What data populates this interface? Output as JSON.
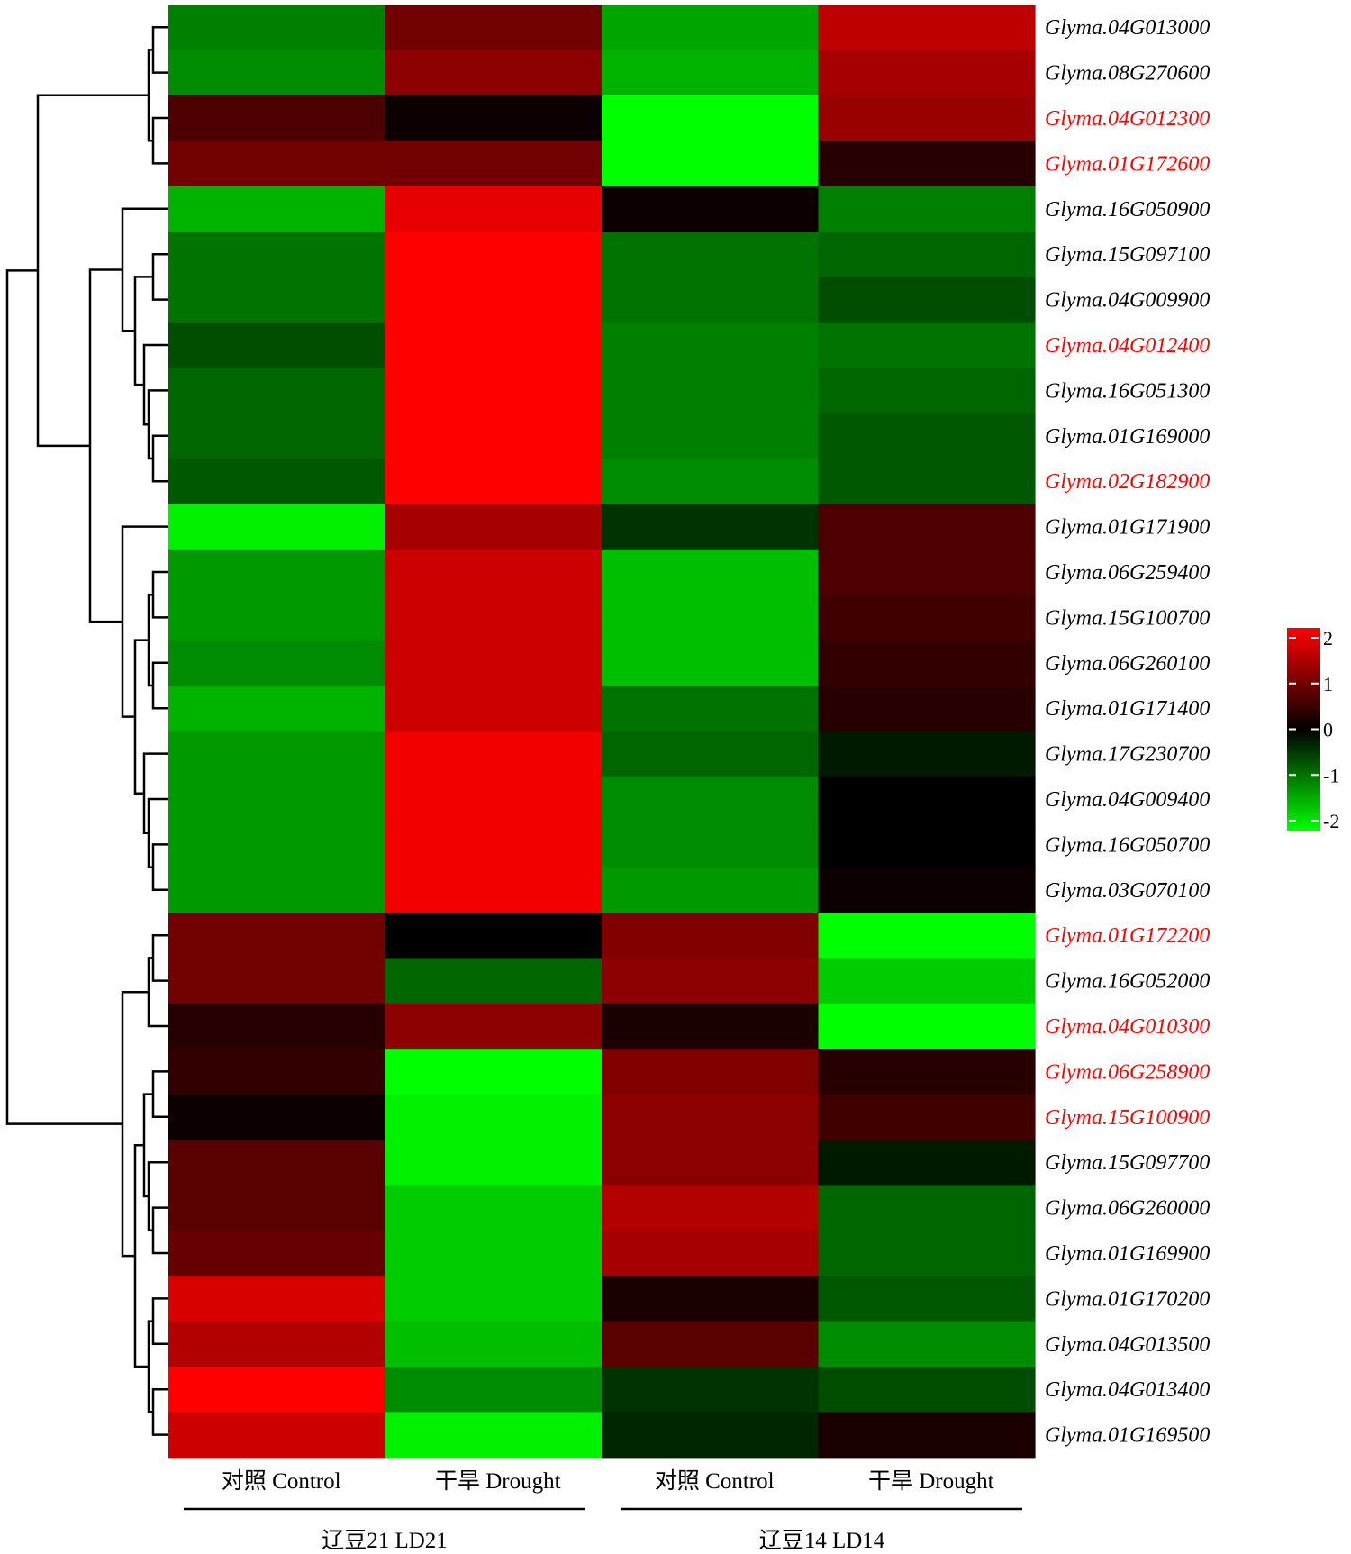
{
  "chart_data": {
    "type": "heatmap",
    "title": "",
    "groups": [
      {
        "name": "辽豆21  LD21",
        "columns": [
          "对照 Control",
          "干旱 Drought"
        ]
      },
      {
        "name": "辽豆14  LD14",
        "columns": [
          "对照 Control",
          "干旱 Drought"
        ]
      }
    ],
    "columns": [
      "对照 Control",
      "干旱 Drought",
      "对照 Control",
      "干旱 Drought"
    ],
    "rows": [
      {
        "gene": "Glyma.04G013000",
        "highlight": false,
        "values": [
          -1.0,
          0.9,
          -1.3,
          1.5
        ]
      },
      {
        "gene": "Glyma.08G270600",
        "highlight": false,
        "values": [
          -1.1,
          1.1,
          -1.4,
          1.3
        ]
      },
      {
        "gene": "Glyma.04G012300",
        "highlight": true,
        "values": [
          0.6,
          0.1,
          -2.0,
          1.2
        ]
      },
      {
        "gene": "Glyma.01G172600",
        "highlight": true,
        "values": [
          0.9,
          0.9,
          -2.0,
          0.3
        ]
      },
      {
        "gene": "Glyma.16G050900",
        "highlight": false,
        "values": [
          -1.4,
          1.8,
          0.1,
          -1.0
        ]
      },
      {
        "gene": "Glyma.15G097100",
        "highlight": false,
        "values": [
          -0.9,
          2.0,
          -0.9,
          -0.8
        ]
      },
      {
        "gene": "Glyma.04G009900",
        "highlight": false,
        "values": [
          -0.9,
          2.0,
          -0.9,
          -0.6
        ]
      },
      {
        "gene": "Glyma.04G012400",
        "highlight": true,
        "values": [
          -0.6,
          2.0,
          -1.0,
          -0.9
        ]
      },
      {
        "gene": "Glyma.16G051300",
        "highlight": false,
        "values": [
          -0.8,
          2.0,
          -1.0,
          -0.8
        ]
      },
      {
        "gene": "Glyma.01G169000",
        "highlight": false,
        "values": [
          -0.8,
          2.0,
          -1.0,
          -0.7
        ]
      },
      {
        "gene": "Glyma.02G182900",
        "highlight": true,
        "values": [
          -0.7,
          2.0,
          -1.1,
          -0.7
        ]
      },
      {
        "gene": "Glyma.01G171900",
        "highlight": false,
        "values": [
          -1.9,
          1.3,
          -0.4,
          0.6
        ]
      },
      {
        "gene": "Glyma.06G259400",
        "highlight": false,
        "values": [
          -1.2,
          1.6,
          -1.5,
          0.6
        ]
      },
      {
        "gene": "Glyma.15G100700",
        "highlight": false,
        "values": [
          -1.2,
          1.6,
          -1.5,
          0.5
        ]
      },
      {
        "gene": "Glyma.06G260100",
        "highlight": false,
        "values": [
          -1.1,
          1.6,
          -1.5,
          0.4
        ]
      },
      {
        "gene": "Glyma.01G171400",
        "highlight": false,
        "values": [
          -1.4,
          1.6,
          -0.9,
          0.3
        ]
      },
      {
        "gene": "Glyma.17G230700",
        "highlight": false,
        "values": [
          -1.2,
          1.9,
          -0.8,
          -0.2
        ]
      },
      {
        "gene": "Glyma.04G009400",
        "highlight": false,
        "values": [
          -1.2,
          1.9,
          -1.1,
          0.0
        ]
      },
      {
        "gene": "Glyma.16G050700",
        "highlight": false,
        "values": [
          -1.2,
          1.9,
          -1.1,
          0.0
        ]
      },
      {
        "gene": "Glyma.03G070100",
        "highlight": false,
        "values": [
          -1.2,
          1.9,
          -1.2,
          0.1
        ]
      },
      {
        "gene": "Glyma.01G172200",
        "highlight": true,
        "values": [
          0.9,
          0.0,
          1.0,
          -2.0
        ]
      },
      {
        "gene": "Glyma.16G052000",
        "highlight": false,
        "values": [
          0.9,
          -0.8,
          1.1,
          -1.6
        ]
      },
      {
        "gene": "Glyma.04G010300",
        "highlight": true,
        "values": [
          0.3,
          1.1,
          0.2,
          -2.0
        ]
      },
      {
        "gene": "Glyma.06G258900",
        "highlight": true,
        "values": [
          0.4,
          -2.0,
          1.0,
          0.3
        ]
      },
      {
        "gene": "Glyma.15G100900",
        "highlight": true,
        "values": [
          0.1,
          -1.9,
          1.1,
          0.5
        ]
      },
      {
        "gene": "Glyma.15G097700",
        "highlight": false,
        "values": [
          0.7,
          -1.9,
          1.1,
          -0.2
        ]
      },
      {
        "gene": "Glyma.06G260000",
        "highlight": false,
        "values": [
          0.7,
          -1.6,
          1.4,
          -0.8
        ]
      },
      {
        "gene": "Glyma.01G169900",
        "highlight": false,
        "values": [
          0.8,
          -1.6,
          1.3,
          -0.8
        ]
      },
      {
        "gene": "Glyma.01G170200",
        "highlight": false,
        "values": [
          1.7,
          -1.6,
          0.2,
          -0.7
        ]
      },
      {
        "gene": "Glyma.04G013500",
        "highlight": false,
        "values": [
          1.4,
          -1.5,
          0.7,
          -1.1
        ]
      },
      {
        "gene": "Glyma.04G013400",
        "highlight": false,
        "values": [
          2.0,
          -1.1,
          -0.4,
          -0.6
        ]
      },
      {
        "gene": "Glyma.01G169500",
        "highlight": false,
        "values": [
          1.6,
          -1.9,
          -0.3,
          0.2
        ]
      }
    ],
    "colorbar": {
      "min": -2,
      "max": 2,
      "ticks": [
        2,
        1,
        0,
        -1,
        -2
      ]
    },
    "colors": {
      "low": "#00ff00",
      "mid": "#000000",
      "high": "#ff0000",
      "highlight_label": "#ff0000",
      "label": "#000000"
    }
  }
}
